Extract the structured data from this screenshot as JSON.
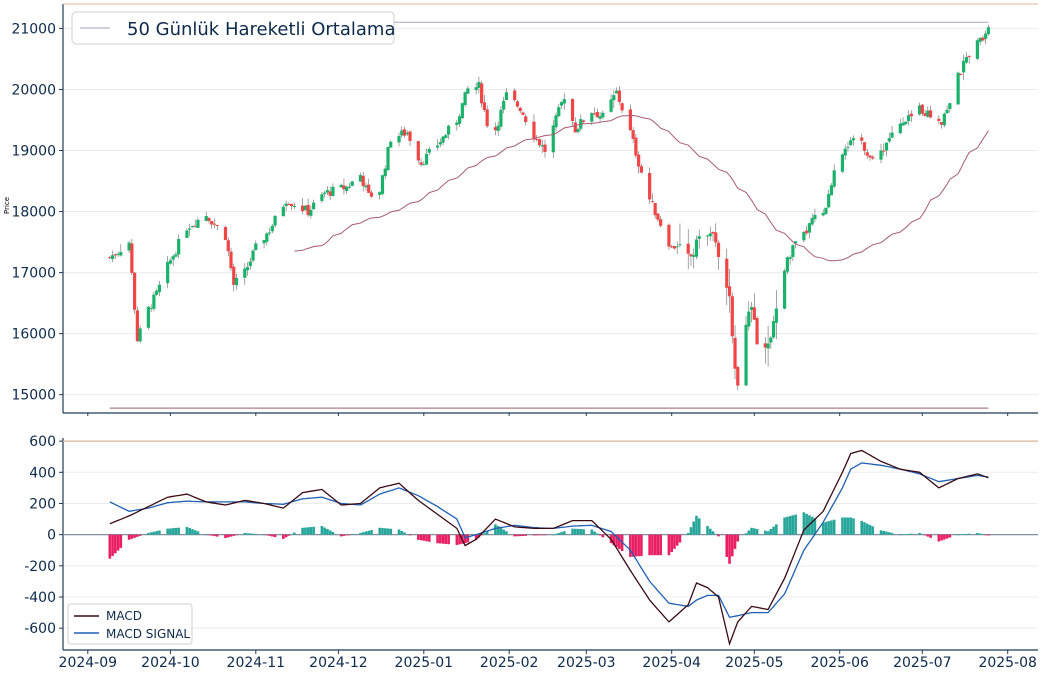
{
  "chart_data": [
    {
      "type": "candlestick",
      "ylabel": "Price",
      "ylim": [
        14700,
        21400
      ],
      "yticks": [
        15000,
        16000,
        17000,
        18000,
        19000,
        20000,
        21000
      ],
      "grid": true,
      "legend": {
        "position": "top-left",
        "entries": [
          "50 Günlük Hareketli Ortalama"
        ]
      },
      "colors": {
        "up": "#1ab26b",
        "down": "#ef4545",
        "ma": "#a85b74",
        "hline": "#b07a8c",
        "axis": "#1f3b57",
        "text": "#0d2a4a"
      },
      "ma_range_x": [
        "2024-11-06",
        "2025-07-25"
      ],
      "hlines": [
        {
          "y": 21100,
          "x": [
            "2024-09-09",
            "2025-07-25"
          ],
          "color": "#b8b0c4"
        },
        {
          "y": 14780,
          "x": [
            "2024-09-09",
            "2025-07-25"
          ],
          "color": "#b07a8c"
        }
      ],
      "anchors": [
        [
          "2024-09-09",
          17250
        ],
        [
          "2024-09-12",
          17350
        ],
        [
          "2024-09-16",
          17500
        ],
        [
          "2024-09-19",
          15900
        ],
        [
          "2024-09-23",
          16400
        ],
        [
          "2024-09-26",
          16650
        ],
        [
          "2024-09-30",
          17100
        ],
        [
          "2024-10-07",
          17750
        ],
        [
          "2024-10-14",
          17950
        ],
        [
          "2024-10-21",
          17600
        ],
        [
          "2024-10-24",
          16800
        ],
        [
          "2024-10-28",
          17000
        ],
        [
          "2024-11-01",
          17400
        ],
        [
          "2024-11-06",
          17700
        ],
        [
          "2024-11-12",
          18200
        ],
        [
          "2024-11-20",
          18000
        ],
        [
          "2024-11-26",
          18300
        ],
        [
          "2024-12-04",
          18400
        ],
        [
          "2024-12-09",
          18600
        ],
        [
          "2024-12-12",
          18250
        ],
        [
          "2024-12-16",
          18350
        ],
        [
          "2024-12-20",
          19200
        ],
        [
          "2024-12-26",
          19300
        ],
        [
          "2024-12-31",
          18800
        ],
        [
          "2025-01-06",
          19100
        ],
        [
          "2025-01-13",
          19500
        ],
        [
          "2025-01-17",
          20000
        ],
        [
          "2025-01-21",
          20050
        ],
        [
          "2025-01-24",
          19450
        ],
        [
          "2025-01-27",
          19350
        ],
        [
          "2025-01-31",
          19900
        ],
        [
          "2025-02-05",
          19700
        ],
        [
          "2025-02-10",
          19250
        ],
        [
          "2025-02-14",
          19000
        ],
        [
          "2025-02-18",
          19500
        ],
        [
          "2025-02-21",
          19900
        ],
        [
          "2025-02-25",
          19350
        ],
        [
          "2025-03-03",
          19650
        ],
        [
          "2025-03-07",
          19550
        ],
        [
          "2025-03-12",
          19950
        ],
        [
          "2025-03-17",
          19300
        ],
        [
          "2025-03-20",
          18800
        ],
        [
          "2025-03-24",
          18200
        ],
        [
          "2025-03-28",
          17800
        ],
        [
          "2025-04-01",
          17400
        ],
        [
          "2025-04-04",
          17500
        ],
        [
          "2025-04-08",
          17200
        ],
        [
          "2025-04-11",
          17600
        ],
        [
          "2025-04-15",
          17700
        ],
        [
          "2025-04-18",
          17300
        ],
        [
          "2025-04-22",
          16600
        ],
        [
          "2025-04-24",
          15400
        ],
        [
          "2025-04-25",
          15200
        ],
        [
          "2025-04-28",
          16200
        ],
        [
          "2025-04-30",
          16400
        ],
        [
          "2025-05-02",
          15900
        ],
        [
          "2025-05-06",
          15800
        ],
        [
          "2025-05-08",
          16200
        ],
        [
          "2025-05-12",
          17100
        ],
        [
          "2025-05-15",
          17400
        ],
        [
          "2025-05-19",
          17600
        ],
        [
          "2025-05-22",
          17850
        ],
        [
          "2025-05-27",
          18000
        ],
        [
          "2025-05-30",
          18700
        ],
        [
          "2025-06-03",
          19100
        ],
        [
          "2025-06-09",
          19150
        ],
        [
          "2025-06-13",
          18800
        ],
        [
          "2025-06-17",
          19050
        ],
        [
          "2025-06-20",
          19300
        ],
        [
          "2025-06-25",
          19450
        ],
        [
          "2025-06-30",
          19700
        ],
        [
          "2025-07-03",
          19600
        ],
        [
          "2025-07-08",
          19500
        ],
        [
          "2025-07-11",
          19800
        ],
        [
          "2025-07-14",
          20200
        ],
        [
          "2025-07-18",
          20600
        ],
        [
          "2025-07-22",
          20800
        ],
        [
          "2025-07-25",
          21050
        ]
      ]
    },
    {
      "type": "line",
      "ylim": [
        -740,
        620
      ],
      "yticks": [
        -600,
        -400,
        -200,
        0,
        200,
        400,
        600
      ],
      "grid": true,
      "legend": {
        "position": "bottom-left",
        "entries": [
          "MACD",
          "MACD SIGNAL"
        ]
      },
      "series": [
        {
          "name": "MACD",
          "color": "#3a0a12"
        },
        {
          "name": "MACD SIGNAL",
          "color": "#1f5fb4"
        }
      ],
      "histogram_colors": {
        "positive": "#26a69a",
        "negative": "#e91e63"
      },
      "hlines": [
        {
          "y": 600,
          "color": "#d9b49a"
        },
        {
          "y": 0,
          "color": "#8090a0"
        }
      ],
      "macd_anchors": [
        [
          "2024-09-09",
          70
        ],
        [
          "2024-09-16",
          120
        ],
        [
          "2024-09-23",
          180
        ],
        [
          "2024-09-30",
          240
        ],
        [
          "2024-10-07",
          260
        ],
        [
          "2024-10-14",
          210
        ],
        [
          "2024-10-21",
          190
        ],
        [
          "2024-10-28",
          220
        ],
        [
          "2024-11-04",
          200
        ],
        [
          "2024-11-11",
          170
        ],
        [
          "2024-11-18",
          270
        ],
        [
          "2024-11-25",
          290
        ],
        [
          "2024-12-02",
          190
        ],
        [
          "2024-12-09",
          200
        ],
        [
          "2024-12-16",
          300
        ],
        [
          "2024-12-23",
          330
        ],
        [
          "2024-12-30",
          220
        ],
        [
          "2025-01-06",
          130
        ],
        [
          "2025-01-13",
          40
        ],
        [
          "2025-01-16",
          -70
        ],
        [
          "2025-01-20",
          -30
        ],
        [
          "2025-01-27",
          100
        ],
        [
          "2025-02-03",
          50
        ],
        [
          "2025-02-10",
          40
        ],
        [
          "2025-02-17",
          40
        ],
        [
          "2025-02-24",
          90
        ],
        [
          "2025-03-03",
          90
        ],
        [
          "2025-03-10",
          -30
        ],
        [
          "2025-03-17",
          -230
        ],
        [
          "2025-03-24",
          -420
        ],
        [
          "2025-03-31",
          -560
        ],
        [
          "2025-04-07",
          -450
        ],
        [
          "2025-04-10",
          -310
        ],
        [
          "2025-04-14",
          -340
        ],
        [
          "2025-04-18",
          -400
        ],
        [
          "2025-04-22",
          -700
        ],
        [
          "2025-04-25",
          -560
        ],
        [
          "2025-04-30",
          -460
        ],
        [
          "2025-05-06",
          -480
        ],
        [
          "2025-05-12",
          -280
        ],
        [
          "2025-05-19",
          30
        ],
        [
          "2025-05-26",
          150
        ],
        [
          "2025-06-02",
          400
        ],
        [
          "2025-06-05",
          520
        ],
        [
          "2025-06-09",
          540
        ],
        [
          "2025-06-16",
          470
        ],
        [
          "2025-06-23",
          420
        ],
        [
          "2025-06-30",
          400
        ],
        [
          "2025-07-07",
          300
        ],
        [
          "2025-07-14",
          360
        ],
        [
          "2025-07-21",
          390
        ],
        [
          "2025-07-25",
          365
        ]
      ],
      "signal_anchors": [
        [
          "2024-09-09",
          210
        ],
        [
          "2024-09-16",
          150
        ],
        [
          "2024-09-23",
          170
        ],
        [
          "2024-09-30",
          205
        ],
        [
          "2024-10-07",
          215
        ],
        [
          "2024-10-14",
          210
        ],
        [
          "2024-10-21",
          210
        ],
        [
          "2024-10-28",
          210
        ],
        [
          "2024-11-04",
          200
        ],
        [
          "2024-11-11",
          195
        ],
        [
          "2024-11-18",
          230
        ],
        [
          "2024-11-25",
          240
        ],
        [
          "2024-12-02",
          200
        ],
        [
          "2024-12-09",
          190
        ],
        [
          "2024-12-16",
          260
        ],
        [
          "2024-12-23",
          300
        ],
        [
          "2024-12-30",
          250
        ],
        [
          "2025-01-06",
          180
        ],
        [
          "2025-01-13",
          100
        ],
        [
          "2025-01-16",
          -20
        ],
        [
          "2025-01-20",
          0
        ],
        [
          "2025-01-27",
          40
        ],
        [
          "2025-02-03",
          60
        ],
        [
          "2025-02-10",
          45
        ],
        [
          "2025-02-17",
          40
        ],
        [
          "2025-02-24",
          55
        ],
        [
          "2025-03-03",
          60
        ],
        [
          "2025-03-10",
          20
        ],
        [
          "2025-03-17",
          -100
        ],
        [
          "2025-03-24",
          -300
        ],
        [
          "2025-03-31",
          -440
        ],
        [
          "2025-04-07",
          -460
        ],
        [
          "2025-04-10",
          -420
        ],
        [
          "2025-04-14",
          -390
        ],
        [
          "2025-04-18",
          -390
        ],
        [
          "2025-04-22",
          -530
        ],
        [
          "2025-04-25",
          -520
        ],
        [
          "2025-04-30",
          -500
        ],
        [
          "2025-05-06",
          -500
        ],
        [
          "2025-05-12",
          -380
        ],
        [
          "2025-05-19",
          -100
        ],
        [
          "2025-05-26",
          80
        ],
        [
          "2025-06-02",
          300
        ],
        [
          "2025-06-05",
          420
        ],
        [
          "2025-06-09",
          460
        ],
        [
          "2025-06-16",
          445
        ],
        [
          "2025-06-23",
          420
        ],
        [
          "2025-06-30",
          390
        ],
        [
          "2025-07-07",
          340
        ],
        [
          "2025-07-14",
          360
        ],
        [
          "2025-07-21",
          380
        ],
        [
          "2025-07-25",
          370
        ]
      ],
      "xticks": [
        "2024-09",
        "2024-10",
        "2024-11",
        "2024-12",
        "2025-01",
        "2025-02",
        "2025-03",
        "2025-04",
        "2025-05",
        "2025-06",
        "2025-07",
        "2025-08"
      ]
    }
  ]
}
